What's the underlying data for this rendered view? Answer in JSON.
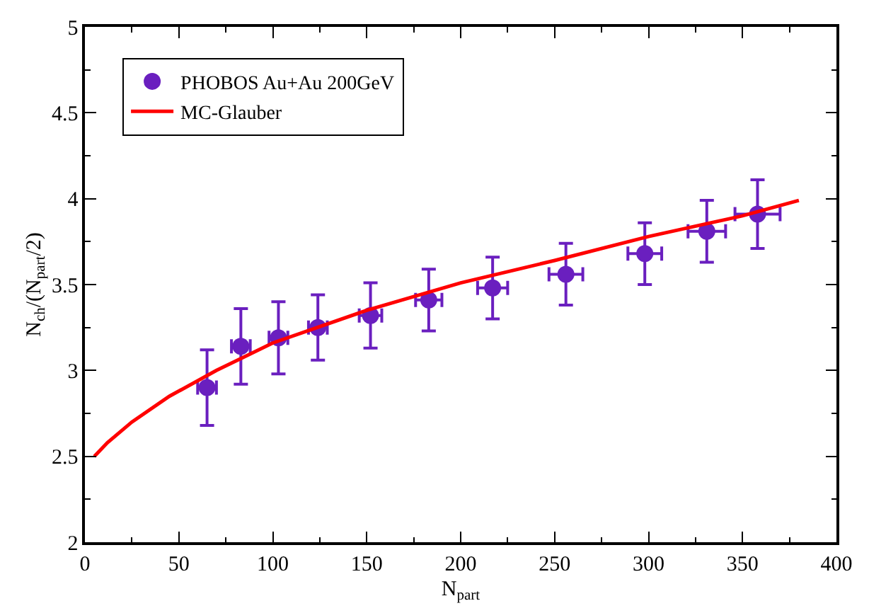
{
  "chart_data": {
    "type": "scatter",
    "xlabel": "N$_{part}$",
    "ylabel": "N$_{ch}$/(N$_{part}$/2)",
    "xlim": [
      0,
      400
    ],
    "xticks": [
      0,
      50,
      100,
      150,
      200,
      250,
      300,
      350,
      400
    ],
    "ylim": [
      2,
      5
    ],
    "yticks": [
      2,
      2.5,
      3,
      3.5,
      4,
      4.5,
      5
    ],
    "grid": false,
    "legend": "top left",
    "series": [
      {
        "name": "PHOBOS Au+Au 200GeV",
        "type": "scatter",
        "color": "#6a1fbf",
        "x": [
          65,
          83,
          103,
          124,
          152,
          183,
          217,
          256,
          298,
          331,
          358
        ],
        "values": [
          2.9,
          3.14,
          3.19,
          3.25,
          3.32,
          3.41,
          3.48,
          3.56,
          3.68,
          3.81,
          3.91
        ],
        "errors": [
          0.22,
          0.22,
          0.21,
          0.19,
          0.19,
          0.18,
          0.18,
          0.18,
          0.18,
          0.18,
          0.2
        ],
        "xerrors": [
          5,
          5,
          5,
          5,
          6,
          7,
          8,
          9,
          9,
          10,
          12
        ]
      },
      {
        "name": "MC-Glauber",
        "type": "line",
        "marker": "none",
        "color": "#ff0000",
        "line_style": "solid",
        "x": [
          5,
          12,
          25,
          45,
          70,
          100,
          150,
          200,
          250,
          300,
          350,
          380
        ],
        "values": [
          2.5,
          2.58,
          2.7,
          2.85,
          3.0,
          3.16,
          3.35,
          3.51,
          3.64,
          3.78,
          3.9,
          3.99
        ]
      }
    ]
  }
}
